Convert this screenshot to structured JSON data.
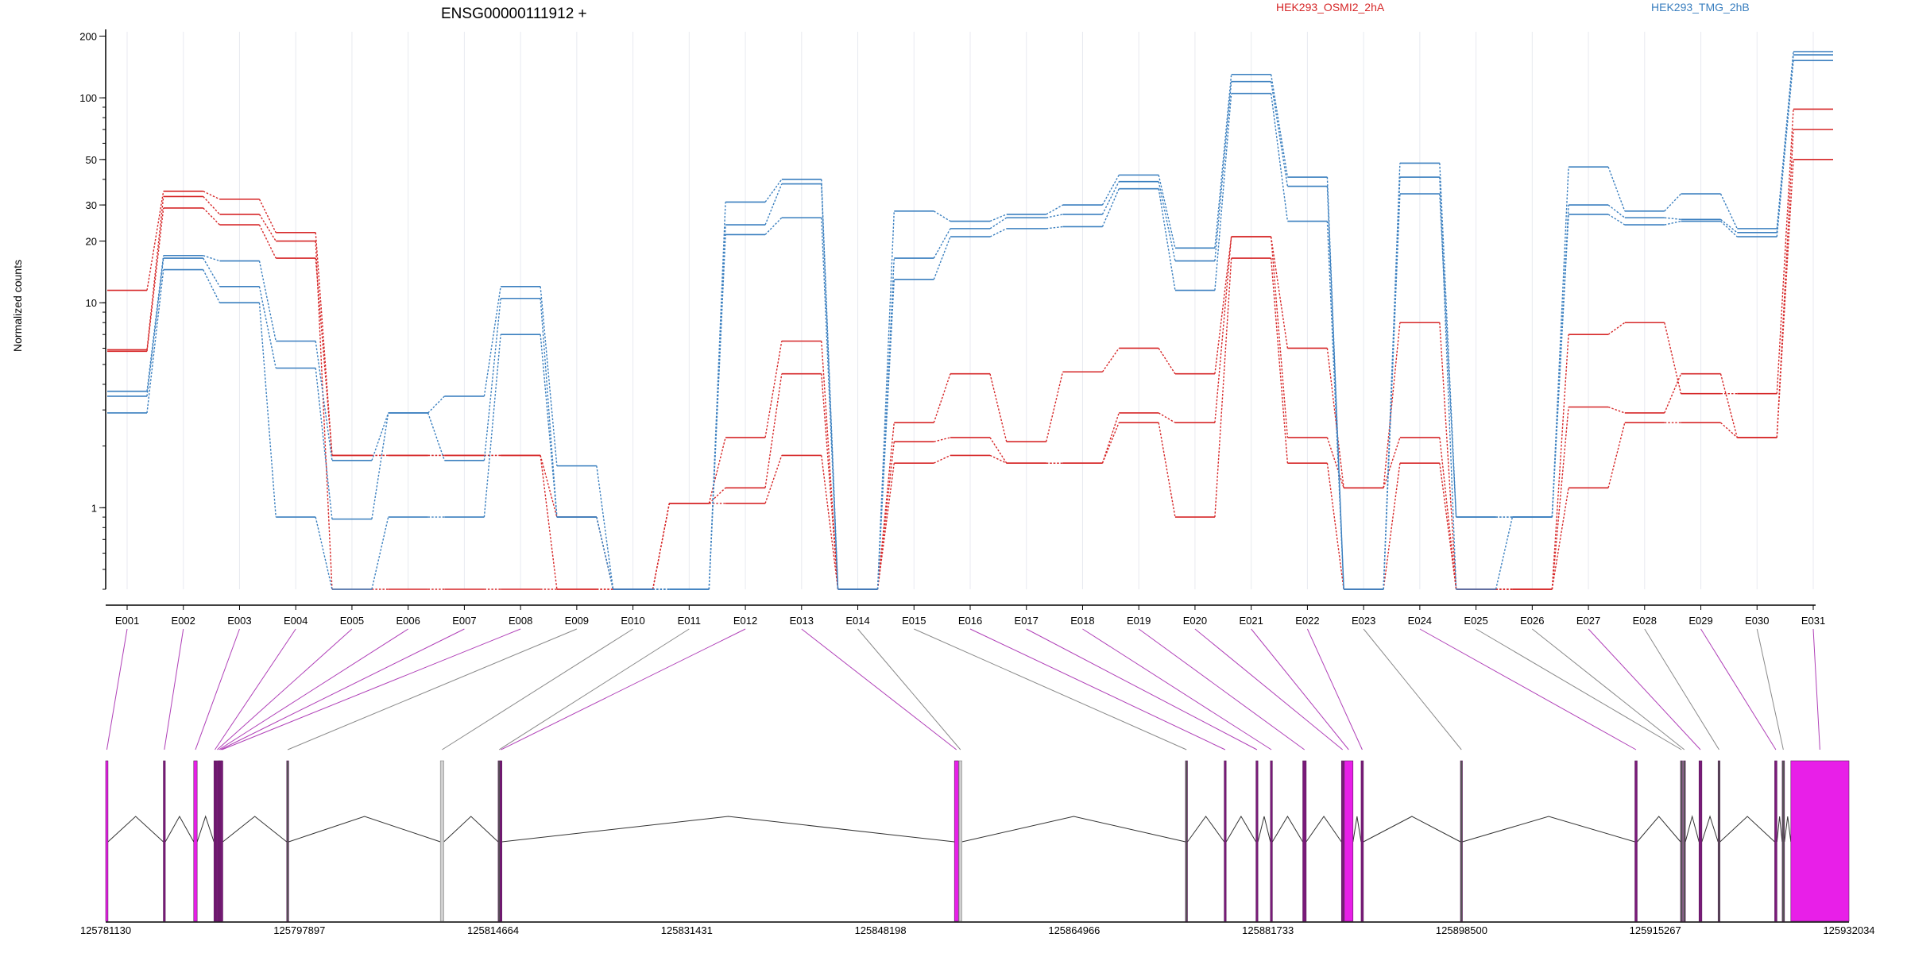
{
  "chart_data": {
    "type": "line",
    "title": "ENSG00000111912 +",
    "ylabel": "Normalized counts",
    "yscale": "log",
    "ylim": [
      0.4,
      210
    ],
    "y_ticks": [
      1,
      10,
      20,
      30,
      50,
      100,
      200
    ],
    "categories": [
      "E001",
      "E002",
      "E003",
      "E004",
      "E005",
      "E006",
      "E007",
      "E008",
      "E009",
      "E010",
      "E011",
      "E012",
      "E013",
      "E014",
      "E015",
      "E016",
      "E017",
      "E018",
      "E019",
      "E020",
      "E021",
      "E022",
      "E023",
      "E024",
      "E025",
      "E026",
      "E027",
      "E028",
      "E029",
      "E030",
      "E031"
    ],
    "series": [
      {
        "name": "HEK293_OSMI2_2hA",
        "color": "#d62728",
        "values": [
          11.5,
          35,
          32,
          22,
          1.8,
          1.8,
          1.8,
          1.8,
          0.4,
          0.4,
          1.05,
          2.2,
          6.5,
          0.4,
          2.6,
          4.5,
          2.1,
          4.6,
          6,
          4.5,
          21,
          6,
          1.25,
          8,
          0.4,
          0.4,
          7,
          8,
          3.6,
          3.6,
          88
        ]
      },
      {
        "name": "HEK293_OSMI2_2hA",
        "color": "#d62728",
        "values": [
          5.9,
          33,
          27,
          20,
          0.4,
          0.4,
          0.4,
          0.4,
          0.4,
          0.4,
          1.05,
          1.25,
          4.5,
          0.4,
          2.1,
          2.2,
          1.65,
          1.65,
          2.9,
          2.6,
          21,
          2.2,
          1.25,
          2.2,
          0.4,
          0.4,
          3.1,
          2.9,
          4.5,
          2.2,
          70
        ]
      },
      {
        "name": "HEK293_OSMI2_2hA",
        "color": "#d62728",
        "values": [
          5.8,
          29,
          24,
          16.5,
          1.8,
          1.8,
          1.8,
          1.8,
          0.9,
          0.4,
          1.05,
          1.05,
          1.8,
          0.4,
          1.65,
          1.8,
          1.65,
          1.65,
          2.6,
          0.9,
          16.5,
          1.65,
          0.4,
          1.65,
          0.4,
          0.4,
          1.25,
          2.6,
          2.6,
          2.2,
          50
        ]
      },
      {
        "name": "HEK293_TMG_2hB",
        "color": "#3a7fbf",
        "values": [
          3.7,
          17,
          16,
          6.5,
          1.7,
          2.9,
          3.5,
          12,
          1.6,
          0.4,
          0.4,
          31,
          40,
          0.4,
          28,
          25,
          27,
          30,
          42,
          18.5,
          130,
          41,
          0.4,
          48,
          0.9,
          0.9,
          46,
          28,
          34,
          23,
          168
        ]
      },
      {
        "name": "HEK293_TMG_2hB",
        "color": "#3a7fbf",
        "values": [
          3.5,
          16.5,
          12,
          4.8,
          0.88,
          2.9,
          1.7,
          10.5,
          0.9,
          0.4,
          0.4,
          24,
          38,
          0.4,
          16.5,
          23,
          26,
          27,
          39,
          16,
          120,
          37,
          0.4,
          41,
          0.4,
          0.9,
          30,
          26,
          25.5,
          22,
          162
        ]
      },
      {
        "name": "HEK293_TMG_2hB",
        "color": "#3a7fbf",
        "values": [
          2.9,
          14.5,
          10,
          0.9,
          0.4,
          0.9,
          0.9,
          7,
          0.9,
          0.4,
          0.4,
          21.5,
          26,
          0.4,
          13,
          21,
          23,
          23.5,
          36,
          11.5,
          105,
          25,
          0.4,
          34,
          0.9,
          0.9,
          27,
          24,
          25,
          21,
          152
        ]
      }
    ],
    "legend": [
      "HEK293_OSMI2_2hA",
      "HEK293_TMG_2hB"
    ],
    "legend_placement": "top-right",
    "grid": "vertical",
    "gene_model": {
      "coordinates": [
        "125781130",
        "125797897",
        "125814664",
        "125831431",
        "125848198",
        "125864966",
        "125881733",
        "125898500",
        "125915267",
        "125932034"
      ],
      "exons": [
        {
          "id": "E001",
          "start": 125781130,
          "end": 125781330,
          "color": "#e81fe8"
        },
        {
          "id": "E002",
          "start": 125786120,
          "end": 125786260,
          "color": "#7a1a7a"
        },
        {
          "id": "E003",
          "start": 125788750,
          "end": 125789050,
          "color": "#e81fe8"
        },
        {
          "id": "E004",
          "start": 125790500,
          "end": 125790650,
          "color": "#7a1a7a"
        },
        {
          "id": "E005",
          "start": 125790700,
          "end": 125790800,
          "color": "#7a1a7a"
        },
        {
          "id": "E006",
          "start": 125790850,
          "end": 125790950,
          "color": "#7a1a7a"
        },
        {
          "id": "E007",
          "start": 125790980,
          "end": 125791080,
          "color": "#7a1a7a"
        },
        {
          "id": "E008",
          "start": 125791100,
          "end": 125791250,
          "color": "#7a1a7a"
        },
        {
          "id": "E009",
          "start": 125796800,
          "end": 125796950,
          "color": "#555555"
        },
        {
          "id": "E010",
          "start": 125810100,
          "end": 125810400,
          "color": "#d0d0d0"
        },
        {
          "id": "E011",
          "start": 125815100,
          "end": 125815250,
          "color": "#555555"
        },
        {
          "id": "E012",
          "start": 125815260,
          "end": 125815400,
          "color": "#7a1a7a"
        },
        {
          "id": "E013",
          "start": 125854600,
          "end": 125854950,
          "color": "#e81fe8"
        },
        {
          "id": "E014",
          "start": 125855000,
          "end": 125855250,
          "color": "#d0d0d0"
        },
        {
          "id": "E015",
          "start": 125874600,
          "end": 125874700,
          "color": "#555555"
        },
        {
          "id": "E016",
          "start": 125877950,
          "end": 125878100,
          "color": "#7a1a7a"
        },
        {
          "id": "E017",
          "start": 125880700,
          "end": 125880850,
          "color": "#7a1a7a"
        },
        {
          "id": "E018",
          "start": 125881950,
          "end": 125882100,
          "color": "#7a1a7a"
        },
        {
          "id": "E019",
          "start": 125884750,
          "end": 125885050,
          "color": "#7a1a7a"
        },
        {
          "id": "E020",
          "start": 125888100,
          "end": 125888300,
          "color": "#7a1a7a"
        },
        {
          "id": "E021",
          "start": 125888350,
          "end": 125889100,
          "color": "#e81fe8"
        },
        {
          "id": "E022",
          "start": 125889800,
          "end": 125890000,
          "color": "#7a1a7a"
        },
        {
          "id": "E023",
          "start": 125898400,
          "end": 125898550,
          "color": "#555555"
        },
        {
          "id": "E024",
          "start": 125913500,
          "end": 125913700,
          "color": "#7a1a7a"
        },
        {
          "id": "E025",
          "start": 125917450,
          "end": 125917600,
          "color": "#555555"
        },
        {
          "id": "E026",
          "start": 125917700,
          "end": 125917850,
          "color": "#555555"
        },
        {
          "id": "E027",
          "start": 125919050,
          "end": 125919300,
          "color": "#7a1a7a"
        },
        {
          "id": "E028",
          "start": 125920700,
          "end": 125920850,
          "color": "#555555"
        },
        {
          "id": "E029",
          "start": 125925600,
          "end": 125925800,
          "color": "#7a1a7a"
        },
        {
          "id": "E030",
          "start": 125926250,
          "end": 125926450,
          "color": "#555555"
        },
        {
          "id": "E031",
          "start": 125927000,
          "end": 125932034,
          "color": "#e81fe8"
        }
      ]
    }
  }
}
